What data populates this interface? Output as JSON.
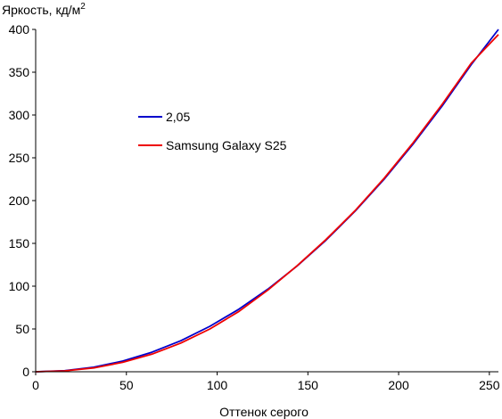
{
  "chart_data": {
    "type": "line",
    "title": "",
    "xlabel": "Оттенок серого",
    "ylabel": "Яркость, кд/м",
    "ylabel_superscript": "2",
    "xlim": [
      0,
      255
    ],
    "ylim": [
      0,
      400
    ],
    "xticks": [
      0,
      50,
      100,
      150,
      200,
      250
    ],
    "yticks": [
      0,
      50,
      100,
      150,
      200,
      250,
      300,
      350,
      400
    ],
    "grid": false,
    "legend": "center-left",
    "series": [
      {
        "name": "2,05",
        "color": "#0000cc",
        "x": [
          0,
          16,
          32,
          48,
          64,
          80,
          96,
          112,
          128,
          144,
          160,
          176,
          192,
          208,
          224,
          240,
          255
        ],
        "y": [
          0,
          1.3,
          5.3,
          12.5,
          22.8,
          36.3,
          53.1,
          73.1,
          96.6,
          123.5,
          153.8,
          187.6,
          225.0,
          266.0,
          310.6,
          358.9,
          400
        ]
      },
      {
        "name": "Samsung Galaxy S25",
        "color": "#ee0000",
        "x": [
          0,
          16,
          32,
          48,
          64,
          80,
          96,
          112,
          128,
          144,
          160,
          176,
          192,
          208,
          224,
          240,
          255
        ],
        "y": [
          0,
          1.0,
          4.5,
          11.0,
          20.5,
          33.5,
          50.0,
          70.5,
          95.5,
          123.8,
          154.5,
          188.2,
          226.0,
          267.5,
          312.5,
          360.5,
          394
        ]
      }
    ]
  }
}
